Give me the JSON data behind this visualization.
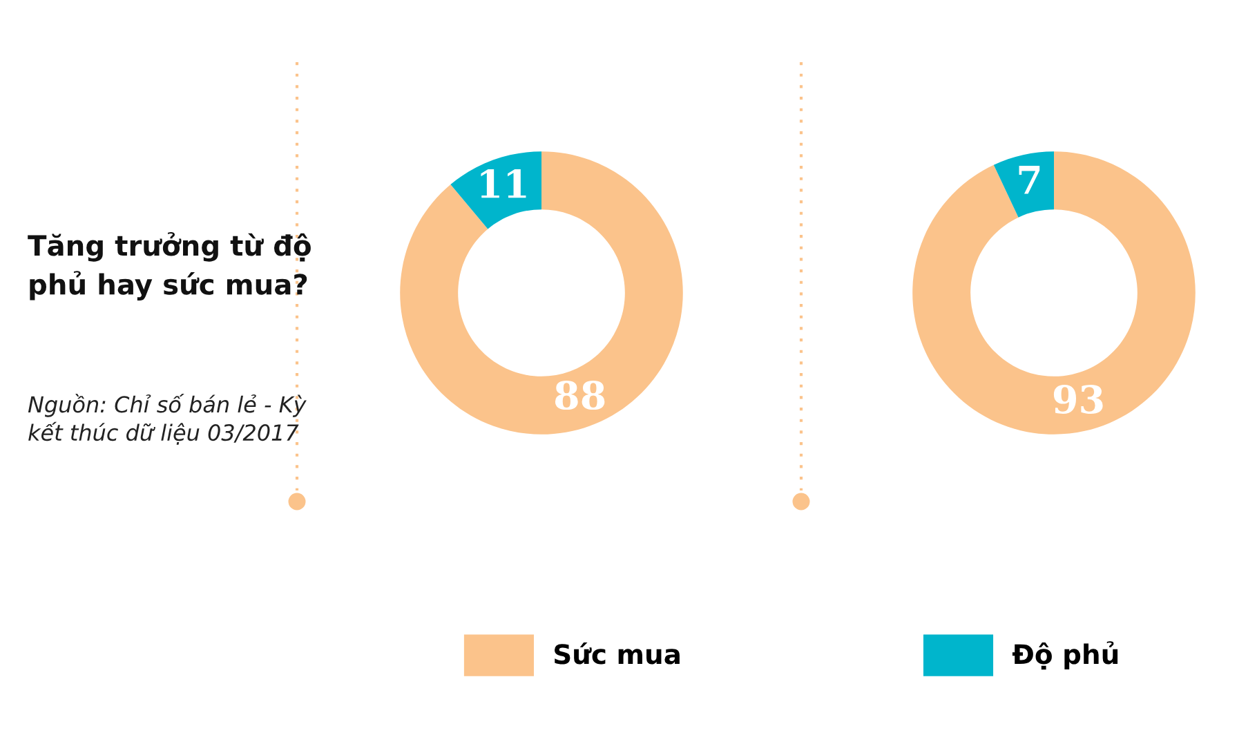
{
  "chart_data": [
    {
      "type": "donut",
      "title": "Tăng trưởng từ độ phủ hay sức mua?",
      "annotations": [
        "Nguồn: Chỉ số bán lẻ - Kỳ kết thúc dữ liệu 03/2017"
      ],
      "categories": [
        "Sức mua",
        "Độ phủ"
      ],
      "values": [
        88,
        11
      ],
      "colors": [
        "#fbc38b",
        "#00b5cc"
      ],
      "data_labels": true,
      "legend": "bottom"
    },
    {
      "type": "donut",
      "categories": [
        null,
        null
      ],
      "values": [
        93,
        7
      ],
      "colors": [
        "#fbc38b",
        "#00b5cc"
      ],
      "data_labels": true
    }
  ]
}
